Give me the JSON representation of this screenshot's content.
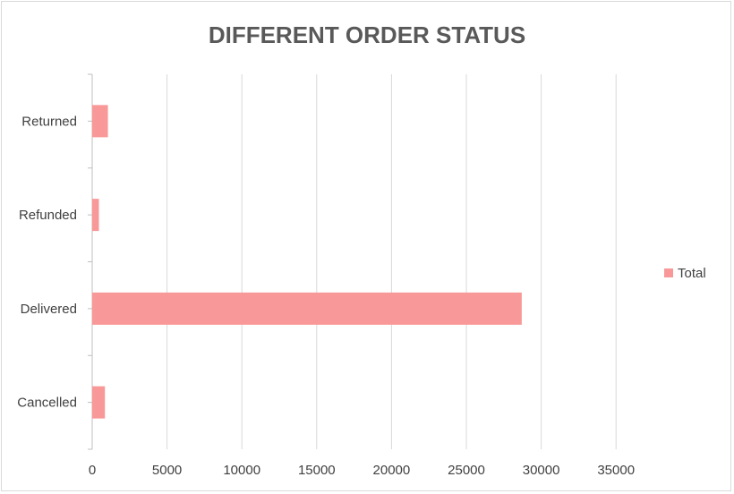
{
  "chart_data": {
    "type": "bar",
    "orientation": "horizontal",
    "title": "DIFFERENT ORDER STATUS",
    "xlabel": "",
    "ylabel": "",
    "categories": [
      "Returned",
      "Refunded",
      "Delivered",
      "Cancelled"
    ],
    "series": [
      {
        "name": "Total",
        "values": [
          1050,
          450,
          28700,
          850
        ]
      }
    ],
    "xlim": [
      0,
      35000
    ],
    "xticks": [
      0,
      5000,
      10000,
      15000,
      20000,
      25000,
      30000,
      35000
    ],
    "xtick_labels": [
      "0",
      "5000",
      "10000",
      "15000",
      "20000",
      "25000",
      "30000",
      "35000"
    ],
    "grid": true,
    "legend": "right",
    "bar_color": "#f89898"
  }
}
